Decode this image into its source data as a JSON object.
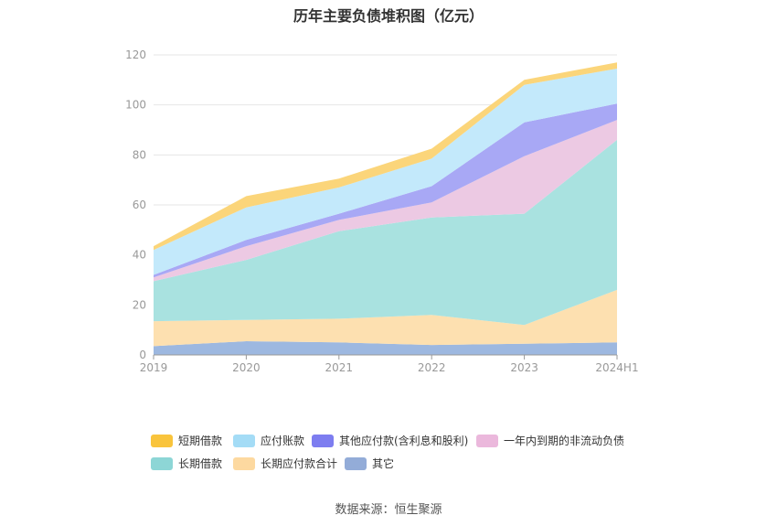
{
  "chart_data": {
    "type": "area",
    "title": "历年主要负债堆积图（亿元）",
    "categories": [
      "2019",
      "2020",
      "2021",
      "2022",
      "2023",
      "2024H1"
    ],
    "yticks": [
      "0",
      "20",
      "40",
      "60",
      "80",
      "100",
      "120"
    ],
    "ylim": [
      0,
      120
    ],
    "stacked": true,
    "series": [
      {
        "name": "其它",
        "color": "#9db8e0",
        "values": [
          3.5,
          5.5,
          5.0,
          4.0,
          4.5,
          5.0
        ]
      },
      {
        "name": "长期应付款合计",
        "color": "#fde0b0",
        "values": [
          10.0,
          8.5,
          9.5,
          12.0,
          7.5,
          21.0
        ]
      },
      {
        "name": "长期借款",
        "color": "#a9e2e0",
        "values": [
          16.0,
          24.0,
          35.0,
          39.0,
          44.5,
          60.0
        ]
      },
      {
        "name": "一年内到期的非流动负债",
        "color": "#ecc9e3",
        "values": [
          1.5,
          5.5,
          4.5,
          6.0,
          23.0,
          8.0
        ]
      },
      {
        "name": "其他应付款(含利息和股利)",
        "color": "#a8a8f5",
        "values": [
          1.0,
          2.5,
          2.5,
          6.5,
          13.5,
          6.5
        ]
      },
      {
        "name": "应付账款",
        "color": "#c3e9fb",
        "values": [
          10.0,
          13.0,
          10.5,
          11.0,
          15.0,
          14.0
        ]
      },
      {
        "name": "短期借款",
        "color": "#fbd57a",
        "values": [
          1.5,
          4.5,
          3.5,
          4.0,
          2.0,
          2.5
        ]
      }
    ],
    "legend": [
      {
        "name": "短期借款",
        "color": "#f9c43c"
      },
      {
        "name": "应付账款",
        "color": "#a4dcf6"
      },
      {
        "name": "其他应付款(含利息和股利)",
        "color": "#7d7df0"
      },
      {
        "name": "一年内到期的非流动负债",
        "color": "#ebb8dc"
      },
      {
        "name": "长期借款",
        "color": "#8dd6d6"
      },
      {
        "name": "长期应付款合计",
        "color": "#fdd9a0"
      },
      {
        "name": "其它",
        "color": "#93acd8"
      }
    ],
    "legend_position": "bottom",
    "grid": true,
    "source": "数据来源：恒生聚源"
  }
}
